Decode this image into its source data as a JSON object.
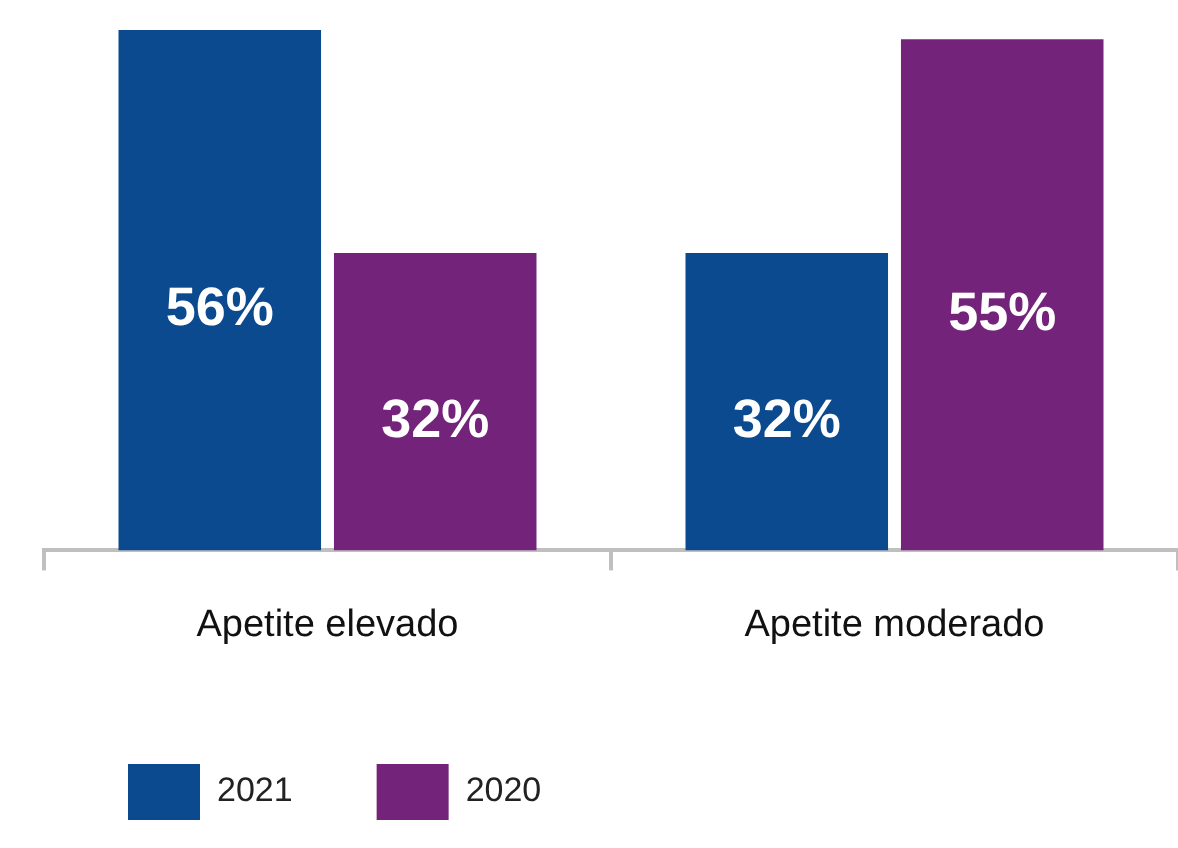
{
  "chart_data": {
    "type": "bar",
    "categories": [
      "Apetite elevado",
      "Apetite moderado"
    ],
    "series": [
      {
        "name": "2021",
        "color": "#0b4a8e",
        "values": [
          56,
          32
        ],
        "value_labels": [
          "56%",
          "32%"
        ]
      },
      {
        "name": "2020",
        "color": "#74237b",
        "values": [
          32,
          55
        ],
        "value_labels": [
          "32%",
          "55%"
        ]
      }
    ],
    "ylim": [
      0,
      56
    ],
    "tick_labels": "x",
    "legend": "bottom left",
    "grid": false
  }
}
